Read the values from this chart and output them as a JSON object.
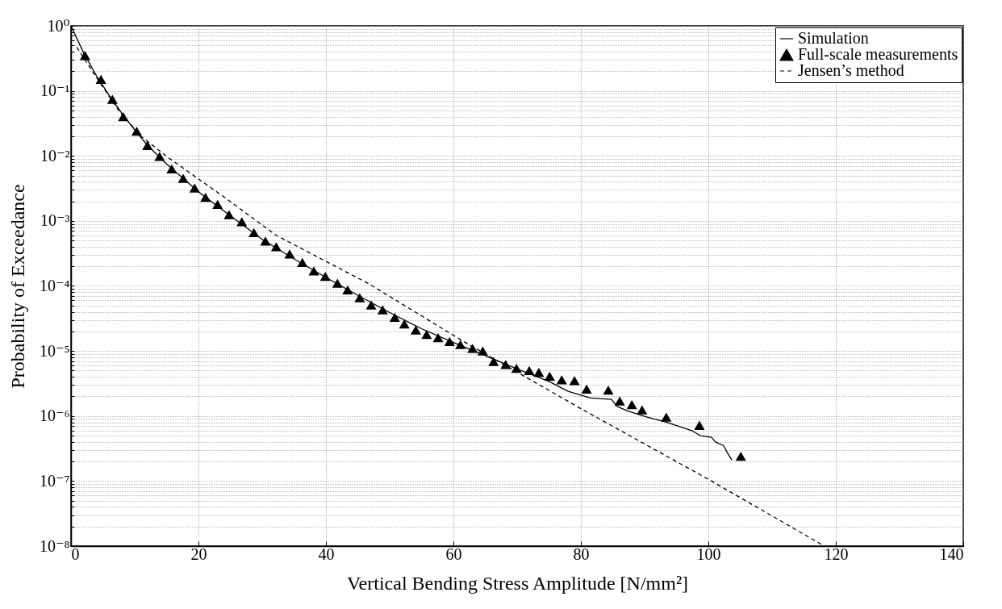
{
  "chart_data": {
    "type": "line",
    "xlabel": "Vertical Bending Stress Amplitude [N/mm²]",
    "ylabel": "Probability of Exceedance",
    "log": "y",
    "grid": true,
    "legend": "top right",
    "xlim": [
      0,
      140
    ],
    "xticks": [
      0,
      20,
      40,
      60,
      80,
      100,
      120,
      140
    ],
    "ylim": [
      1e-08,
      1
    ],
    "yticks": [
      {
        "value": 1e-08,
        "label": "10⁻⁸"
      },
      {
        "value": 2e-08,
        "label": null
      },
      {
        "value": 3e-08,
        "label": null
      },
      {
        "value": 4e-08,
        "label": null
      },
      {
        "value": 5e-08,
        "label": null
      },
      {
        "value": 6e-08,
        "label": null
      },
      {
        "value": 7e-08,
        "label": null
      },
      {
        "value": 8e-08,
        "label": null
      },
      {
        "value": 9e-08,
        "label": null
      },
      {
        "value": 1e-07,
        "label": "10⁻⁷"
      },
      {
        "value": 2e-07,
        "label": null
      },
      {
        "value": 3e-07,
        "label": null
      },
      {
        "value": 4e-07,
        "label": null
      },
      {
        "value": 5e-07,
        "label": null
      },
      {
        "value": 6e-07,
        "label": null
      },
      {
        "value": 7e-07,
        "label": null
      },
      {
        "value": 8e-07,
        "label": null
      },
      {
        "value": 9e-07,
        "label": null
      },
      {
        "value": 1e-06,
        "label": "10⁻⁶"
      },
      {
        "value": 2e-06,
        "label": null
      },
      {
        "value": 3e-06,
        "label": null
      },
      {
        "value": 4e-06,
        "label": null
      },
      {
        "value": 5e-06,
        "label": null
      },
      {
        "value": 6e-06,
        "label": null
      },
      {
        "value": 7e-06,
        "label": null
      },
      {
        "value": 8e-06,
        "label": null
      },
      {
        "value": 9e-06,
        "label": null
      },
      {
        "value": 1e-05,
        "label": "10⁻⁵"
      },
      {
        "value": 2e-05,
        "label": null
      },
      {
        "value": 3e-05,
        "label": null
      },
      {
        "value": 4e-05,
        "label": null
      },
      {
        "value": 5e-05,
        "label": null
      },
      {
        "value": 6e-05,
        "label": null
      },
      {
        "value": 7e-05,
        "label": null
      },
      {
        "value": 8e-05,
        "label": null
      },
      {
        "value": 9e-05,
        "label": null
      },
      {
        "value": 0.0001,
        "label": "10⁻⁴"
      },
      {
        "value": 0.0002,
        "label": null
      },
      {
        "value": 0.0003,
        "label": null
      },
      {
        "value": 0.0004,
        "label": null
      },
      {
        "value": 0.0005,
        "label": null
      },
      {
        "value": 0.0006,
        "label": null
      },
      {
        "value": 0.0007,
        "label": null
      },
      {
        "value": 0.0008,
        "label": null
      },
      {
        "value": 0.0009,
        "label": null
      },
      {
        "value": 0.001,
        "label": "10⁻³"
      },
      {
        "value": 0.002,
        "label": null
      },
      {
        "value": 0.003,
        "label": null
      },
      {
        "value": 0.004,
        "label": null
      },
      {
        "value": 0.005,
        "label": null
      },
      {
        "value": 0.006,
        "label": null
      },
      {
        "value": 0.007,
        "label": null
      },
      {
        "value": 0.008,
        "label": null
      },
      {
        "value": 0.009,
        "label": null
      },
      {
        "value": 0.01,
        "label": "10⁻²"
      },
      {
        "value": 0.02,
        "label": null
      },
      {
        "value": 0.03,
        "label": null
      },
      {
        "value": 0.04,
        "label": null
      },
      {
        "value": 0.05,
        "label": null
      },
      {
        "value": 0.06,
        "label": null
      },
      {
        "value": 0.07,
        "label": null
      },
      {
        "value": 0.08,
        "label": null
      },
      {
        "value": 0.09,
        "label": null
      },
      {
        "value": 0.1,
        "label": "10⁻¹"
      },
      {
        "value": 0.2,
        "label": null
      },
      {
        "value": 0.3,
        "label": null
      },
      {
        "value": 0.4,
        "label": null
      },
      {
        "value": 0.5,
        "label": null
      },
      {
        "value": 0.6,
        "label": null
      },
      {
        "value": 0.7,
        "label": null
      },
      {
        "value": 0.8,
        "label": null
      },
      {
        "value": 0.9,
        "label": null
      },
      {
        "value": 1,
        "label": "10⁰"
      }
    ],
    "series": [
      {
        "name": "Simulation",
        "line_style": "solid",
        "marker": "none",
        "color": "#000000",
        "x": [
          0,
          2,
          4,
          6,
          8,
          10,
          12,
          15,
          20,
          25,
          30,
          35,
          40,
          45,
          50,
          55,
          60,
          65,
          70,
          75,
          78,
          81.5,
          84.8,
          85.7,
          87.3,
          90.4,
          93.3,
          97.5,
          98.7,
          100.5,
          101.1,
          102.4,
          103,
          103.7
        ],
        "values": [
          1,
          0.38,
          0.17,
          0.085,
          0.045,
          0.025,
          0.0145,
          0.0075,
          0.0028,
          0.0012,
          0.00052,
          0.00026,
          0.000135,
          7.2e-05,
          3.9e-05,
          2.2e-05,
          1.35e-05,
          8.5e-06,
          5.3e-06,
          3.4e-06,
          2.4e-06,
          1.9e-06,
          1.8e-06,
          1.4e-06,
          1.2e-06,
          9.6e-07,
          8.1e-07,
          5.9e-07,
          5e-07,
          4.7e-07,
          4e-07,
          3.5e-07,
          2.7e-07,
          2.1e-07
        ]
      },
      {
        "name": "Full-scale measurements",
        "type": "scatter",
        "marker": "triangle",
        "color": "#000000",
        "x": [
          2.2,
          4.7,
          6.5,
          8.2,
          10.3,
          12,
          13.9,
          15.8,
          17.6,
          19.4,
          21.1,
          23,
          24.8,
          26.8,
          28.7,
          30.5,
          32.2,
          34.3,
          36.3,
          38.1,
          39.9,
          41.8,
          43.4,
          45.3,
          47.1,
          48.9,
          50.8,
          52.3,
          54.1,
          55.8,
          57.6,
          59.4,
          61.1,
          63,
          64.6,
          66.3,
          68.2,
          69.9,
          71.9,
          73.4,
          75.1,
          77,
          79,
          80.9,
          84.3,
          86.1,
          88,
          89.6,
          93.4,
          98.6,
          105.1
        ],
        "values": [
          0.35,
          0.15,
          0.074,
          0.04,
          0.024,
          0.0145,
          0.0098,
          0.0063,
          0.0045,
          0.0032,
          0.0023,
          0.0018,
          0.00125,
          0.00097,
          0.00066,
          0.00049,
          0.0004,
          0.00031,
          0.00023,
          0.00017,
          0.00014,
          0.00011,
          8.7e-05,
          6.6e-05,
          5.1e-05,
          4.3e-05,
          3.3e-05,
          2.6e-05,
          2.1e-05,
          1.8e-05,
          1.6e-05,
          1.4e-05,
          1.26e-05,
          1.1e-05,
          1e-05,
          6.9e-06,
          6.2e-06,
          5.4e-06,
          5e-06,
          4.7e-06,
          4.1e-06,
          3.6e-06,
          3.5e-06,
          2.6e-06,
          2.5e-06,
          1.7e-06,
          1.5e-06,
          1.24e-06,
          9.6e-07,
          7.2e-07,
          2.4e-07
        ]
      },
      {
        "name": "Jensen’s method",
        "type": "line",
        "line_style": "dashed",
        "marker": "none",
        "color": "#000000",
        "x": [
          0.9,
          4,
          7.6,
          11,
          15.2,
          24.1,
          32.2,
          46.8,
          61.6,
          80,
          100.5,
          118.2
        ],
        "values": [
          0.47,
          0.16,
          0.048,
          0.02,
          0.0095,
          0.0023,
          0.0006,
          0.000107,
          1.4e-05,
          1.3e-06,
          1e-07,
          1e-08
        ]
      }
    ]
  }
}
